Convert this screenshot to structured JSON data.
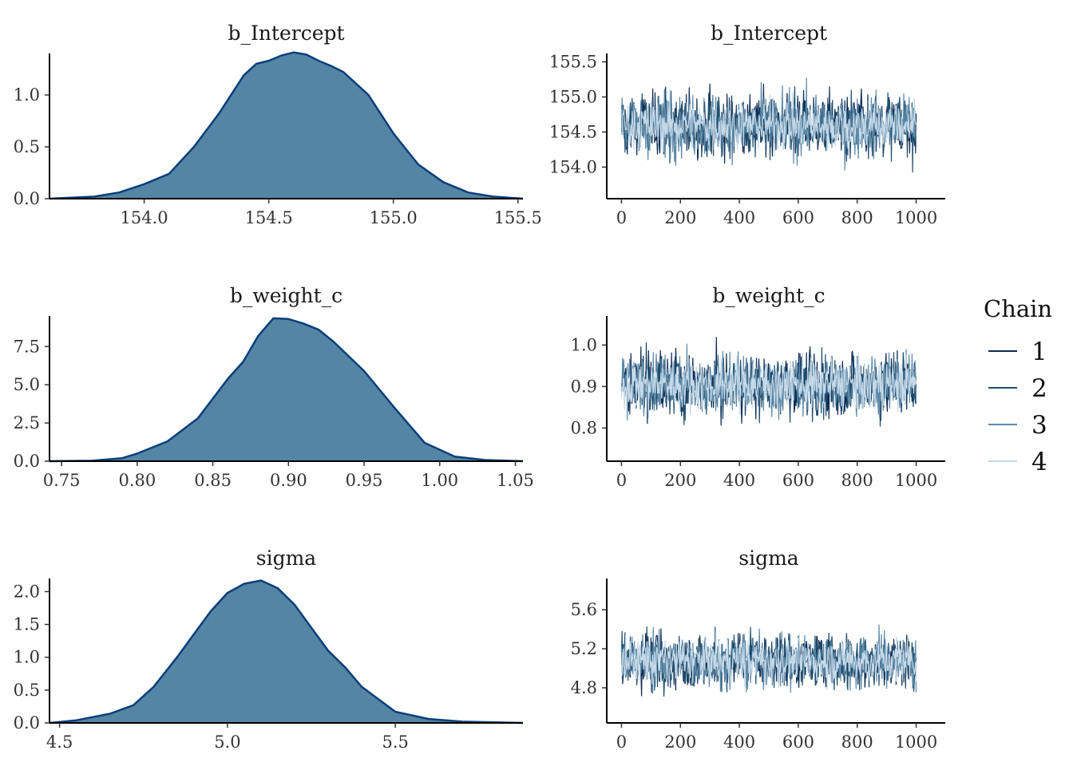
{
  "legend": {
    "title": "Chain",
    "items": [
      {
        "label": "1",
        "color": "#0d2a52"
      },
      {
        "label": "2",
        "color": "#1f4e6e"
      },
      {
        "label": "3",
        "color": "#5d8aa8"
      },
      {
        "label": "4",
        "color": "#c5d9e8"
      }
    ]
  },
  "colors": {
    "density_fill": "#5485a4",
    "density_line": "#0b3f7a"
  },
  "chart_data": [
    {
      "type": "area",
      "kind": "density",
      "title": "b_Intercept",
      "xlim": [
        153.62,
        155.52
      ],
      "ylim": [
        0,
        1.4
      ],
      "xticks": [
        {
          "v": 154.0,
          "label": "154.0"
        },
        {
          "v": 154.5,
          "label": "154.5"
        },
        {
          "v": 155.0,
          "label": "155.0"
        },
        {
          "v": 155.5,
          "label": "155.5"
        }
      ],
      "yticks": [
        {
          "v": 0.0,
          "label": "0.0"
        },
        {
          "v": 0.5,
          "label": "0.5"
        },
        {
          "v": 1.0,
          "label": "1.0"
        }
      ],
      "x": [
        153.62,
        153.8,
        153.9,
        154.0,
        154.1,
        154.2,
        154.3,
        154.4,
        154.45,
        154.5,
        154.55,
        154.6,
        154.65,
        154.7,
        154.75,
        154.8,
        154.9,
        155.0,
        155.1,
        155.2,
        155.3,
        155.4,
        155.52
      ],
      "y": [
        0.0,
        0.02,
        0.06,
        0.14,
        0.24,
        0.5,
        0.82,
        1.19,
        1.3,
        1.33,
        1.38,
        1.41,
        1.39,
        1.33,
        1.28,
        1.22,
        1.0,
        0.63,
        0.33,
        0.16,
        0.06,
        0.02,
        0.0
      ]
    },
    {
      "type": "line",
      "kind": "trace",
      "title": "b_Intercept",
      "xlim": [
        -50,
        1050
      ],
      "ylim": [
        153.55,
        155.62
      ],
      "center": 154.6,
      "spread": 0.3,
      "xticks": [
        {
          "v": 0,
          "label": "0"
        },
        {
          "v": 200,
          "label": "200"
        },
        {
          "v": 400,
          "label": "400"
        },
        {
          "v": 600,
          "label": "600"
        },
        {
          "v": 800,
          "label": "800"
        },
        {
          "v": 1000,
          "label": "1000"
        }
      ],
      "yticks": [
        {
          "v": 154.0,
          "label": "154.0"
        },
        {
          "v": 154.5,
          "label": "154.5"
        },
        {
          "v": 155.0,
          "label": "155.0"
        },
        {
          "v": 155.5,
          "label": "155.5"
        }
      ]
    },
    {
      "type": "area",
      "kind": "density",
      "title": "b_weight_c",
      "xlim": [
        0.742,
        1.055
      ],
      "ylim": [
        0,
        9.5
      ],
      "xticks": [
        {
          "v": 0.75,
          "label": "0.75"
        },
        {
          "v": 0.8,
          "label": "0.80"
        },
        {
          "v": 0.85,
          "label": "0.85"
        },
        {
          "v": 0.9,
          "label": "0.90"
        },
        {
          "v": 0.95,
          "label": "0.95"
        },
        {
          "v": 1.0,
          "label": "1.00"
        },
        {
          "v": 1.05,
          "label": "1.05"
        }
      ],
      "yticks": [
        {
          "v": 0.0,
          "label": "0.0"
        },
        {
          "v": 2.5,
          "label": "2.5"
        },
        {
          "v": 5.0,
          "label": "5.0"
        },
        {
          "v": 7.5,
          "label": "7.5"
        }
      ],
      "x": [
        0.742,
        0.77,
        0.79,
        0.8,
        0.82,
        0.84,
        0.86,
        0.87,
        0.88,
        0.89,
        0.9,
        0.91,
        0.92,
        0.93,
        0.95,
        0.97,
        0.99,
        1.01,
        1.03,
        1.055
      ],
      "y": [
        0.0,
        0.03,
        0.2,
        0.5,
        1.3,
        2.8,
        5.4,
        6.5,
        8.2,
        9.35,
        9.3,
        9.0,
        8.6,
        7.8,
        5.9,
        3.5,
        1.2,
        0.3,
        0.08,
        0.0
      ]
    },
    {
      "type": "line",
      "kind": "trace",
      "title": "b_weight_c",
      "xlim": [
        -50,
        1050
      ],
      "ylim": [
        0.72,
        1.07
      ],
      "center": 0.905,
      "spread": 0.05,
      "xticks": [
        {
          "v": 0,
          "label": "0"
        },
        {
          "v": 200,
          "label": "200"
        },
        {
          "v": 400,
          "label": "400"
        },
        {
          "v": 600,
          "label": "600"
        },
        {
          "v": 800,
          "label": "800"
        },
        {
          "v": 1000,
          "label": "1000"
        }
      ],
      "yticks": [
        {
          "v": 0.8,
          "label": "0.8"
        },
        {
          "v": 0.9,
          "label": "0.9"
        },
        {
          "v": 1.0,
          "label": "1.0"
        }
      ]
    },
    {
      "type": "area",
      "kind": "density",
      "title": "sigma",
      "xlim": [
        4.47,
        5.88
      ],
      "ylim": [
        0,
        2.2
      ],
      "xticks": [
        {
          "v": 4.5,
          "label": "4.5"
        },
        {
          "v": 5.0,
          "label": "5.0"
        },
        {
          "v": 5.5,
          "label": "5.5"
        }
      ],
      "yticks": [
        {
          "v": 0.0,
          "label": "0.0"
        },
        {
          "v": 0.5,
          "label": "0.5"
        },
        {
          "v": 1.0,
          "label": "1.0"
        },
        {
          "v": 1.5,
          "label": "1.5"
        },
        {
          "v": 2.0,
          "label": "2.0"
        }
      ],
      "x": [
        4.47,
        4.55,
        4.65,
        4.72,
        4.78,
        4.85,
        4.9,
        4.95,
        5.0,
        5.05,
        5.1,
        5.15,
        5.2,
        5.25,
        5.3,
        5.35,
        5.4,
        5.5,
        5.6,
        5.7,
        5.88
      ],
      "y": [
        0.0,
        0.04,
        0.14,
        0.27,
        0.55,
        1.0,
        1.35,
        1.7,
        1.98,
        2.12,
        2.17,
        2.05,
        1.8,
        1.45,
        1.1,
        0.85,
        0.55,
        0.17,
        0.06,
        0.02,
        0.0
      ]
    },
    {
      "type": "line",
      "kind": "trace",
      "title": "sigma",
      "xlim": [
        -50,
        1050
      ],
      "ylim": [
        4.44,
        5.92
      ],
      "center": 5.08,
      "spread": 0.19,
      "xticks": [
        {
          "v": 0,
          "label": "0"
        },
        {
          "v": 200,
          "label": "200"
        },
        {
          "v": 400,
          "label": "400"
        },
        {
          "v": 600,
          "label": "600"
        },
        {
          "v": 800,
          "label": "800"
        },
        {
          "v": 1000,
          "label": "1000"
        }
      ],
      "yticks": [
        {
          "v": 4.8,
          "label": "4.8"
        },
        {
          "v": 5.2,
          "label": "5.2"
        },
        {
          "v": 5.6,
          "label": "5.6"
        }
      ]
    }
  ]
}
